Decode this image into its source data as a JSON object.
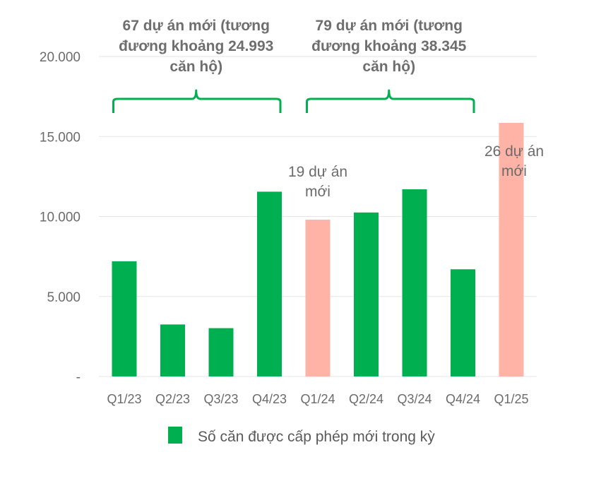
{
  "chart_data": {
    "type": "bar",
    "categories": [
      "Q1/23",
      "Q2/23",
      "Q3/23",
      "Q4/23",
      "Q1/24",
      "Q2/24",
      "Q3/24",
      "Q4/24",
      "Q1/25"
    ],
    "series": [
      {
        "name": "Số căn được cấp phép mới trong kỳ",
        "values": [
          7200,
          3250,
          3020,
          11550,
          9800,
          10250,
          11700,
          6700,
          15850
        ]
      }
    ],
    "highlighted": [
      false,
      false,
      false,
      false,
      true,
      false,
      false,
      false,
      true
    ],
    "ylim": [
      0,
      20000
    ],
    "yticks": [
      "-",
      "5.000",
      "10.000",
      "15.000",
      "20.000"
    ],
    "grid": "horizontal",
    "legend_position": "bottom",
    "colors": {
      "bar": "#00b050",
      "highlight": "#ffb3a7",
      "brace": "#00b050",
      "grid": "#e6e6e6"
    },
    "group_annotations": [
      {
        "lines": [
          "67 dự án mới (tương",
          "đương khoảng 24.993",
          "căn hộ)"
        ],
        "from": 0,
        "to": 3
      },
      {
        "lines": [
          "79 dự án mới (tương",
          "đương khoảng 38.345",
          "căn hộ)"
        ],
        "from": 4,
        "to": 7
      }
    ],
    "bar_annotations": [
      {
        "index": 4,
        "lines": [
          "19 dự án",
          "mới"
        ]
      },
      {
        "index": 8,
        "lines": [
          "26 dự án",
          "mới"
        ]
      }
    ]
  }
}
